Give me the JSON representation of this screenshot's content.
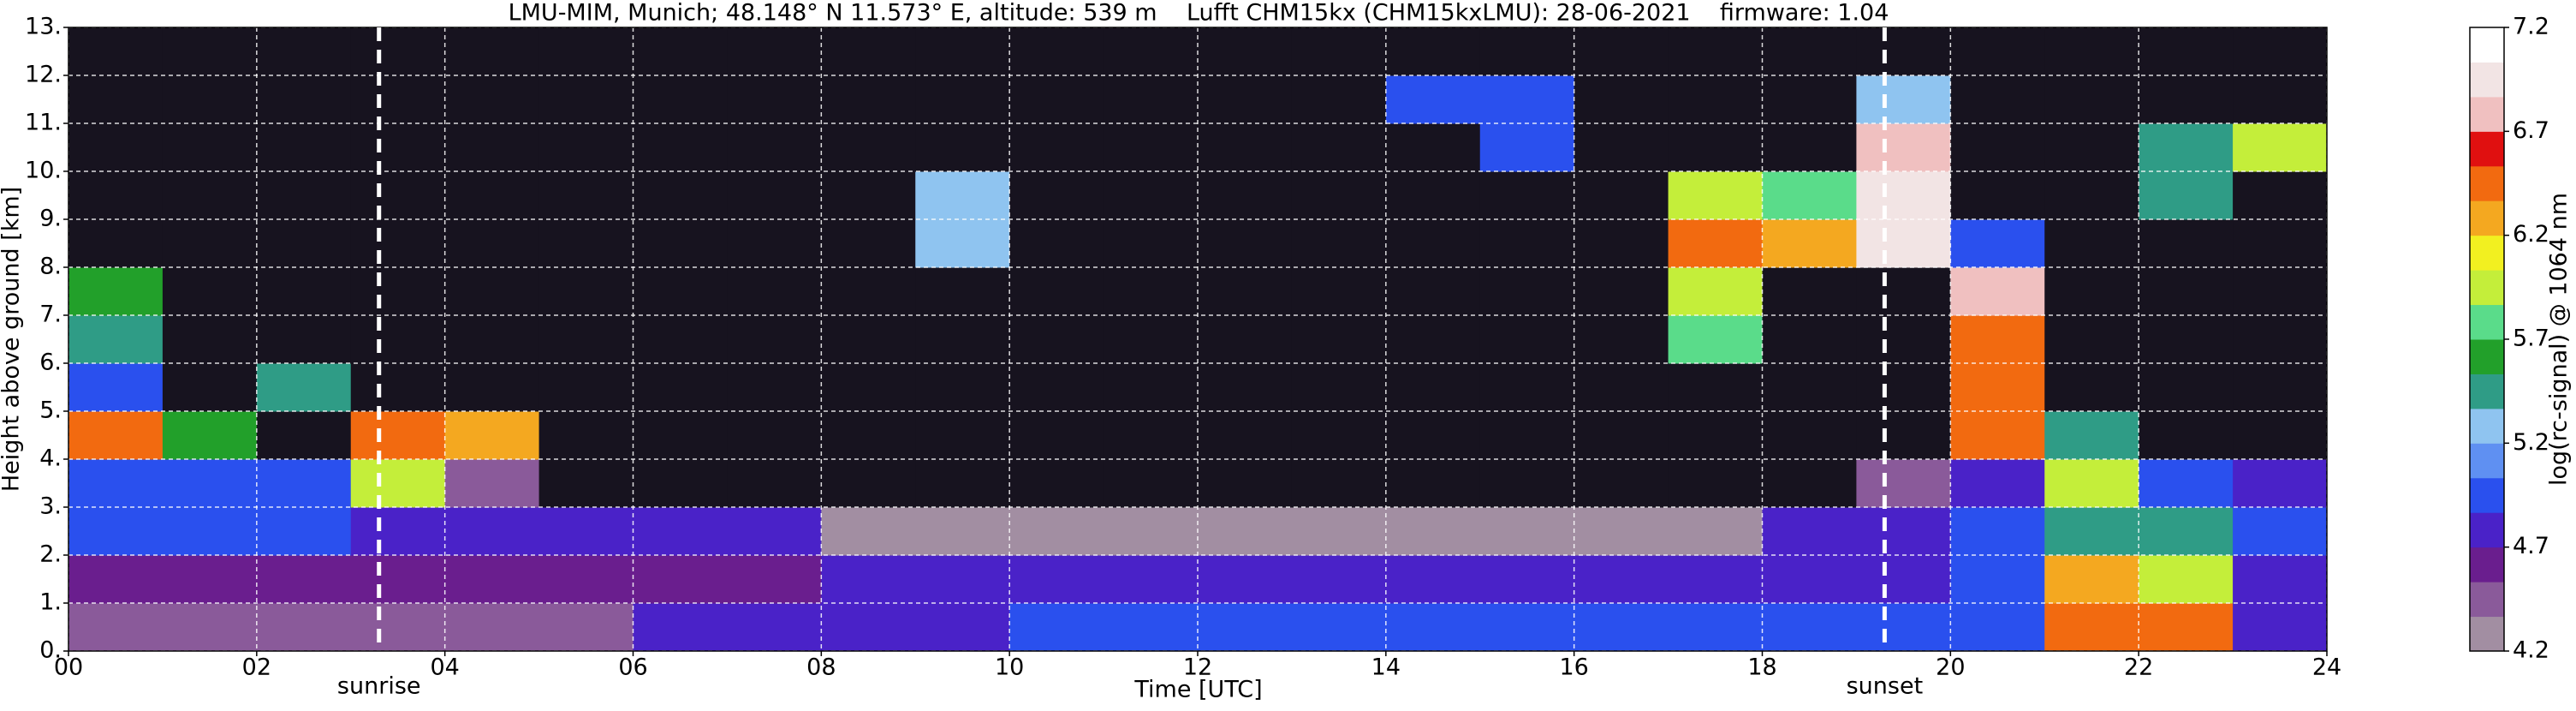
{
  "chart_data": {
    "type": "heatmap",
    "title": "LMU-MIM, Munich; 48.148° N 11.573° E, altitude: 539 m    Lufft CHM15kx (CHM15kxLMU): 28-06-2021    firmware: 1.04",
    "x_label": "Time [UTC]",
    "y_label": "Height above ground [km]",
    "xlim": [
      0,
      24
    ],
    "ylim": [
      0,
      13
    ],
    "xticks": [
      {
        "value": 0,
        "label": "00"
      },
      {
        "value": 2,
        "label": "02"
      },
      {
        "value": 4,
        "label": "04"
      },
      {
        "value": 6,
        "label": "06"
      },
      {
        "value": 8,
        "label": "08"
      },
      {
        "value": 10,
        "label": "10"
      },
      {
        "value": 12,
        "label": "12"
      },
      {
        "value": 14,
        "label": "14"
      },
      {
        "value": 16,
        "label": "16"
      },
      {
        "value": 18,
        "label": "18"
      },
      {
        "value": 20,
        "label": "20"
      },
      {
        "value": 22,
        "label": "22"
      },
      {
        "value": 24,
        "label": "24"
      }
    ],
    "yticks": [
      {
        "value": 0,
        "label": "0."
      },
      {
        "value": 1,
        "label": "1."
      },
      {
        "value": 2,
        "label": "2."
      },
      {
        "value": 3,
        "label": "3."
      },
      {
        "value": 4,
        "label": "4."
      },
      {
        "value": 5,
        "label": "5."
      },
      {
        "value": 6,
        "label": "6."
      },
      {
        "value": 7,
        "label": "7."
      },
      {
        "value": 8,
        "label": "8."
      },
      {
        "value": 9,
        "label": "9."
      },
      {
        "value": 10,
        "label": "10."
      },
      {
        "value": 11,
        "label": "11."
      },
      {
        "value": 12,
        "label": "12."
      },
      {
        "value": 13,
        "label": "13."
      }
    ],
    "grid": true,
    "z": [
      [
        4.4,
        4.4,
        4.4,
        4.4,
        4.4,
        4.4,
        4.8,
        4.8,
        4.8,
        4.8,
        5.0,
        5.0,
        5.0,
        5.0,
        5.0,
        5.0,
        5.0,
        5.0,
        5.0,
        5.0,
        5.0,
        6.5,
        6.5,
        4.8
      ],
      [
        4.6,
        4.6,
        4.6,
        4.6,
        4.6,
        4.6,
        4.6,
        4.6,
        4.7,
        4.7,
        4.7,
        4.8,
        4.8,
        4.8,
        4.8,
        4.8,
        4.8,
        4.8,
        4.8,
        4.8,
        4.9,
        6.3,
        6.0,
        4.8
      ],
      [
        4.9,
        4.9,
        4.9,
        4.7,
        4.7,
        4.7,
        4.7,
        4.7,
        4.3,
        4.3,
        4.3,
        4.3,
        4.3,
        4.3,
        4.3,
        4.3,
        4.3,
        4.3,
        4.8,
        4.8,
        5.0,
        5.5,
        5.5,
        5.0
      ],
      [
        4.9,
        5.0,
        4.9,
        6.0,
        4.5,
        4.0,
        4.0,
        4.0,
        4.0,
        4.0,
        4.0,
        4.0,
        4.0,
        4.0,
        4.0,
        4.0,
        4.0,
        4.0,
        4.0,
        4.5,
        4.7,
        6.0,
        5.0,
        4.7
      ],
      [
        6.5,
        5.6,
        4.0,
        6.5,
        6.3,
        4.0,
        4.0,
        4.0,
        4.0,
        4.0,
        4.0,
        4.0,
        4.0,
        4.0,
        4.0,
        4.0,
        4.0,
        4.0,
        4.0,
        4.0,
        6.5,
        5.5,
        4.0,
        4.0
      ],
      [
        5.0,
        4.0,
        5.5,
        4.0,
        4.0,
        4.0,
        4.0,
        4.0,
        4.0,
        4.0,
        4.0,
        4.0,
        4.0,
        4.0,
        4.0,
        4.0,
        4.0,
        4.0,
        4.0,
        4.0,
        6.5,
        4.0,
        4.0,
        4.0
      ],
      [
        5.5,
        4.0,
        4.0,
        4.0,
        4.0,
        4.0,
        4.0,
        4.0,
        4.0,
        4.0,
        4.0,
        4.0,
        4.0,
        4.0,
        4.0,
        4.0,
        4.0,
        5.8,
        4.0,
        4.0,
        6.5,
        4.0,
        4.0,
        4.0
      ],
      [
        5.6,
        4.0,
        4.0,
        4.0,
        4.0,
        4.0,
        4.0,
        4.0,
        4.0,
        4.0,
        4.0,
        4.0,
        4.0,
        4.0,
        4.0,
        4.0,
        4.0,
        6.0,
        4.0,
        4.0,
        6.8,
        4.0,
        4.0,
        4.0
      ],
      [
        4.0,
        4.0,
        4.0,
        4.0,
        4.0,
        4.0,
        4.0,
        4.0,
        4.0,
        5.3,
        4.0,
        4.0,
        4.0,
        4.0,
        4.0,
        4.0,
        4.0,
        6.4,
        6.3,
        6.9,
        5.0,
        4.0,
        4.0,
        4.0
      ],
      [
        4.0,
        4.0,
        4.0,
        4.0,
        4.0,
        4.0,
        4.0,
        4.0,
        4.0,
        5.2,
        4.0,
        4.0,
        4.0,
        4.0,
        4.0,
        4.0,
        4.0,
        6.0,
        5.8,
        7.0,
        4.0,
        4.0,
        5.5,
        4.0
      ],
      [
        4.0,
        4.0,
        4.0,
        4.0,
        4.0,
        4.0,
        4.0,
        4.0,
        4.0,
        4.0,
        4.0,
        4.0,
        4.0,
        4.0,
        4.0,
        5.0,
        4.0,
        4.0,
        4.0,
        6.8,
        4.0,
        4.0,
        5.5,
        6.0
      ],
      [
        4.0,
        4.0,
        4.0,
        4.0,
        4.0,
        4.0,
        4.0,
        4.0,
        4.0,
        4.0,
        4.0,
        4.0,
        4.0,
        4.0,
        5.0,
        5.0,
        4.0,
        4.0,
        4.0,
        5.2,
        4.0,
        4.0,
        4.0,
        4.0
      ],
      [
        4.0,
        4.0,
        4.0,
        4.0,
        4.0,
        4.0,
        4.0,
        4.0,
        4.0,
        4.0,
        4.0,
        4.0,
        4.0,
        4.0,
        4.0,
        4.0,
        4.0,
        4.0,
        4.0,
        4.0,
        4.0,
        4.0,
        4.0,
        4.0
      ]
    ],
    "under_color": "#17131f",
    "colorbar": {
      "label": "log(rc-signal) @ 1064 nm",
      "lim": [
        4.2,
        7.2
      ],
      "ticks": [
        4.2,
        4.7,
        5.2,
        5.7,
        6.2,
        6.7,
        7.2
      ],
      "colors": [
        "#a28ea2",
        "#8a5a9a",
        "#6a1e8e",
        "#4a22c8",
        "#2a50ee",
        "#5f90f2",
        "#8fc4f0",
        "#2f9c86",
        "#22a02a",
        "#5adc8a",
        "#c4ee3a",
        "#f2f020",
        "#f4a820",
        "#f26a10",
        "#e01010",
        "#f0c0c0",
        "#f2e4e4",
        "#ffffff"
      ]
    },
    "annotations": [
      {
        "text": "sunrise",
        "x": 3.3
      },
      {
        "text": "sunset",
        "x": 19.3
      }
    ]
  }
}
